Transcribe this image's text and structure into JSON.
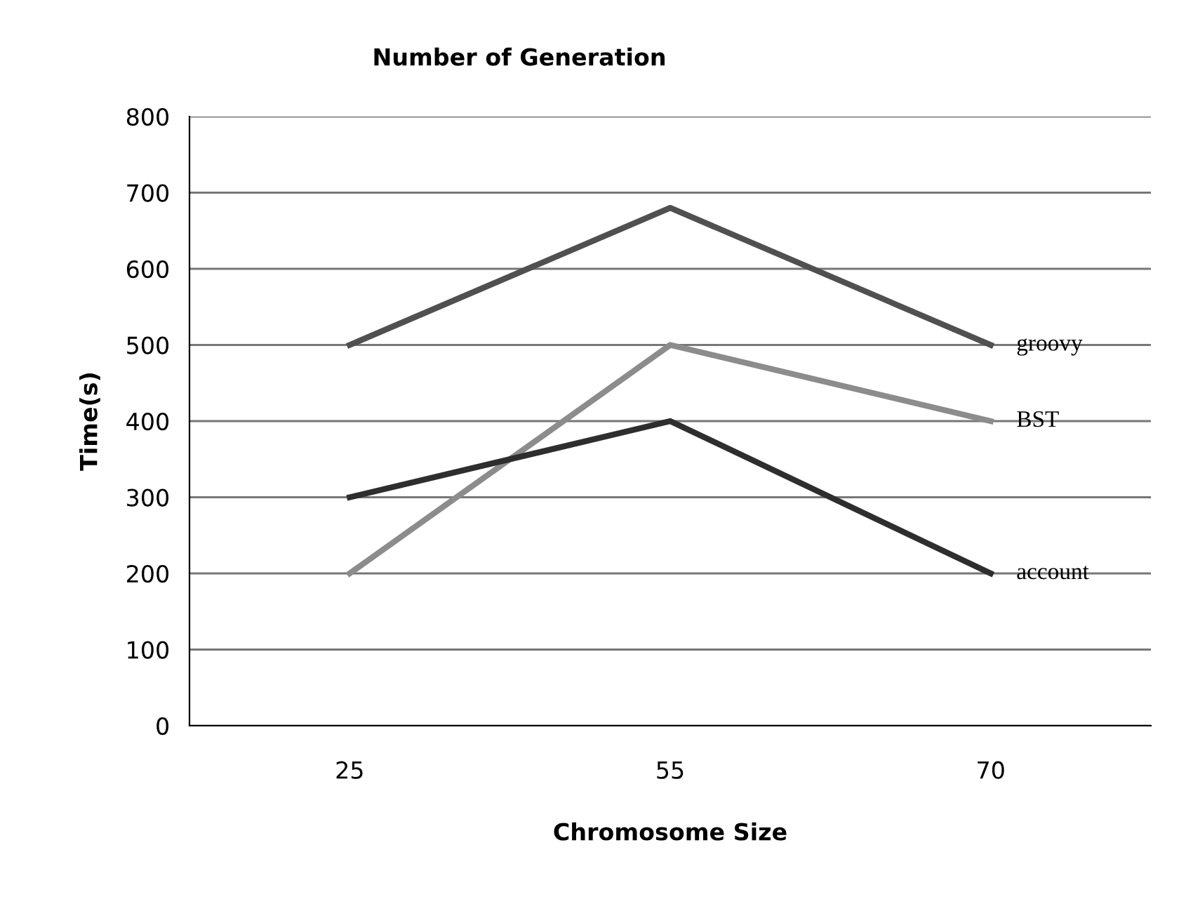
{
  "chart_data": {
    "type": "line",
    "title": "Number of Generation",
    "xlabel": "Chromosome Size",
    "ylabel": "Time(s)",
    "categories": [
      "25",
      "55",
      "70"
    ],
    "series": [
      {
        "name": "groovy",
        "color": "#505050",
        "values": [
          500,
          680,
          500
        ]
      },
      {
        "name": "BST",
        "color": "#8c8c8c",
        "values": [
          200,
          500,
          400
        ]
      },
      {
        "name": "account",
        "color": "#2e2e2e",
        "values": [
          300,
          400,
          200
        ]
      }
    ],
    "ylim": [
      0,
      800
    ],
    "yticks": [
      0,
      100,
      200,
      300,
      400,
      500,
      600,
      700,
      800
    ],
    "grid": "y",
    "legend": false,
    "marker": "none",
    "line_style": "solid"
  }
}
